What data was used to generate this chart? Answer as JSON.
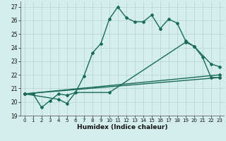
{
  "xlabel": "Humidex (Indice chaleur)",
  "xlim": [
    -0.5,
    23.5
  ],
  "ylim": [
    19,
    27.4
  ],
  "yticks": [
    19,
    20,
    21,
    22,
    23,
    24,
    25,
    26,
    27
  ],
  "xticks": [
    0,
    1,
    2,
    3,
    4,
    5,
    6,
    7,
    8,
    9,
    10,
    11,
    12,
    13,
    14,
    15,
    16,
    17,
    18,
    19,
    20,
    21,
    22,
    23
  ],
  "bg_color": "#d4eeed",
  "grid_color": "#b8d8d4",
  "line_color": "#1a6b5a",
  "lines": [
    {
      "x": [
        0,
        1,
        2,
        3,
        4,
        5,
        6,
        7,
        8,
        9,
        10,
        11,
        12,
        13,
        14,
        15,
        16,
        17,
        18,
        19,
        20,
        21,
        22,
        23
      ],
      "y": [
        20.6,
        20.6,
        19.6,
        20.1,
        20.6,
        20.5,
        20.7,
        21.9,
        23.6,
        24.3,
        26.1,
        27.0,
        26.2,
        25.9,
        25.9,
        26.4,
        25.4,
        26.1,
        25.8,
        24.5,
        24.1,
        23.3,
        21.8,
        21.8
      ],
      "marker": "D",
      "markersize": 2.0,
      "linewidth": 1.0
    },
    {
      "x": [
        0,
        4,
        5,
        6,
        10,
        19,
        20,
        22,
        23
      ],
      "y": [
        20.6,
        20.2,
        19.9,
        20.7,
        20.7,
        24.4,
        24.1,
        22.8,
        22.6
      ],
      "marker": "D",
      "markersize": 2.0,
      "linewidth": 1.0
    },
    {
      "x": [
        0,
        23
      ],
      "y": [
        20.6,
        21.8
      ],
      "marker": "D",
      "markersize": 2.0,
      "linewidth": 1.0
    },
    {
      "x": [
        0,
        23
      ],
      "y": [
        20.6,
        22.0
      ],
      "marker": "D",
      "markersize": 2.0,
      "linewidth": 1.0
    }
  ]
}
